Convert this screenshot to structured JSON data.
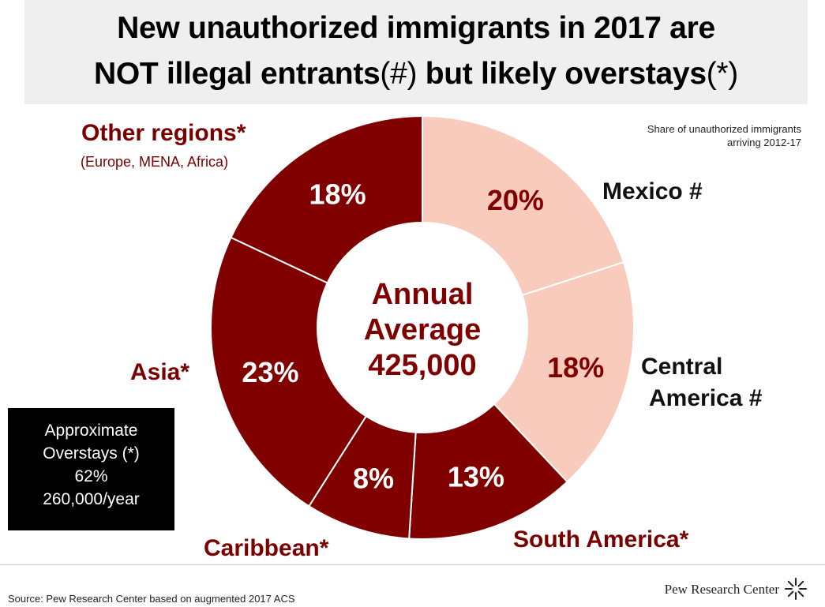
{
  "title": {
    "line1": "New unauthorized immigrants in 2017 are",
    "line2_main": "NOT illegal entrants",
    "line2_mark1": "(#)",
    "line2_mid": " but likely overstays",
    "line2_mark2": "(*)"
  },
  "chart_data": {
    "type": "donut",
    "note": "Share of unauthorized immigrants arriving 2012-17",
    "center_text": [
      "Annual",
      "Average",
      "425,000"
    ],
    "categories": [
      "Mexico #",
      "Central America #",
      "South America*",
      "Caribbean*",
      "Asia*",
      "Other regions*"
    ],
    "values": [
      20,
      18,
      13,
      8,
      23,
      18
    ],
    "value_labels": [
      "20%",
      "18%",
      "13%",
      "8%",
      "23%",
      "18%"
    ],
    "other_regions_detail": "(Europe, MENA, Africa)",
    "colors": {
      "Mexico #": "#f9cbbd",
      "Central America #": "#f9cbbd",
      "South America*": "#800000",
      "Caribbean*": "#800000",
      "Asia*": "#800000",
      "Other regions*": "#800000"
    }
  },
  "labels": {
    "mexico": "Mexico #",
    "central_1": "Central",
    "central_2": "America #",
    "south": "South America*",
    "caribbean": "Caribbean*",
    "asia": "Asia*",
    "other": "Other regions*",
    "other_detail": "(Europe, MENA, Africa)"
  },
  "overstays": {
    "line1": "Approximate",
    "line2": "Overstays (*)",
    "line3": "62%",
    "line4": "260,000/year"
  },
  "footer": {
    "source": "Source: Pew Research Center based on augmented 2017 ACS",
    "brand": "Pew Research Center"
  }
}
